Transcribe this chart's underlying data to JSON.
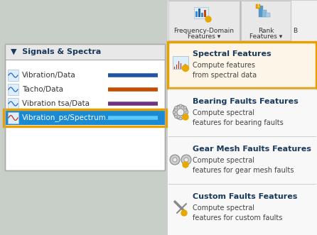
{
  "bg_color": "#d3d3d3",
  "ribbon_bg": "#f0f0f0",
  "panel_bg": "#ffffff",
  "selected_highlight": "#1a8ad4",
  "orange_border": "#e8a000",
  "highlight_bg": "#fdf6e8",
  "title_color": "#1a3a5c",
  "text_dark": "#1a3a5c",
  "text_gray": "#444444",
  "line_blue": "#2155a3",
  "line_red": "#c44e00",
  "line_purple": "#6c3483",
  "line_cyan": "#5bc8f5",
  "signals_title": "Signals & Spectra",
  "signals": [
    {
      "name": "Vibration/Data",
      "line_color": "#2155a3",
      "selected": false
    },
    {
      "name": "Tacho/Data",
      "line_color": "#c44e00",
      "selected": false
    },
    {
      "name": "Vibration tsa/Data",
      "line_color": "#6c3483",
      "selected": false
    },
    {
      "name": "Vibration_ps/Spectrum...",
      "line_color": "#5bc8f5",
      "selected": true
    }
  ],
  "freq_domain_label1": "Frequency-Domain",
  "freq_domain_label2": "Features ▾",
  "rank_label1": "Rank",
  "rank_label2": "Features ▾",
  "menu_items": [
    {
      "title": "Spectral Features",
      "desc1": "Compute features",
      "desc2": "from spectral data",
      "highlighted": true
    },
    {
      "title": "Bearing Faults Features",
      "desc1": "Compute spectral",
      "desc2": "features for bearing faults",
      "highlighted": false
    },
    {
      "title": "Gear Mesh Faults Features",
      "desc1": "Compute spectral",
      "desc2": "features for gear mesh faults",
      "highlighted": false
    },
    {
      "title": "Custom Faults Features",
      "desc1": "Compute spectral",
      "desc2": "features for custom faults",
      "highlighted": false
    }
  ]
}
